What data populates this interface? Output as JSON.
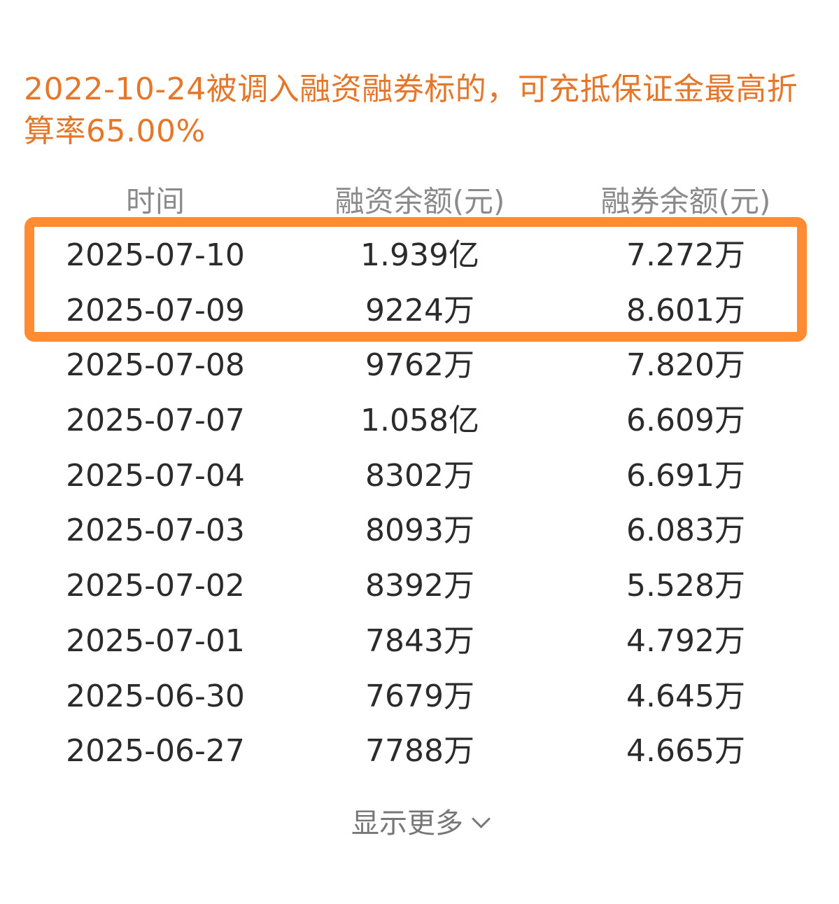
{
  "notice": "2022-10-24被调入融资融券标的，可充抵保证金最高折算率65.00%",
  "table": {
    "headers": [
      "时间",
      "融资余额(元)",
      "融券余额(元)"
    ],
    "rows": [
      {
        "date": "2025-07-10",
        "financing": "1.939亿",
        "securities": "7.272万"
      },
      {
        "date": "2025-07-09",
        "financing": "9224万",
        "securities": "8.601万"
      },
      {
        "date": "2025-07-08",
        "financing": "9762万",
        "securities": "7.820万"
      },
      {
        "date": "2025-07-07",
        "financing": "1.058亿",
        "securities": "6.609万"
      },
      {
        "date": "2025-07-04",
        "financing": "8302万",
        "securities": "6.691万"
      },
      {
        "date": "2025-07-03",
        "financing": "8093万",
        "securities": "6.083万"
      },
      {
        "date": "2025-07-02",
        "financing": "8392万",
        "securities": "5.528万"
      },
      {
        "date": "2025-07-01",
        "financing": "7843万",
        "securities": "4.792万"
      },
      {
        "date": "2025-06-30",
        "financing": "7679万",
        "securities": "4.645万"
      },
      {
        "date": "2025-06-27",
        "financing": "7788万",
        "securities": "4.665万"
      }
    ]
  },
  "show_more": {
    "label": "显示更多",
    "icon": "chevron-down-icon"
  },
  "colors": {
    "notice_text": "#e5772a",
    "highlight_border": "#ff8c33",
    "header_text": "#8a8a8a",
    "cell_text": "#2b2b2b"
  }
}
